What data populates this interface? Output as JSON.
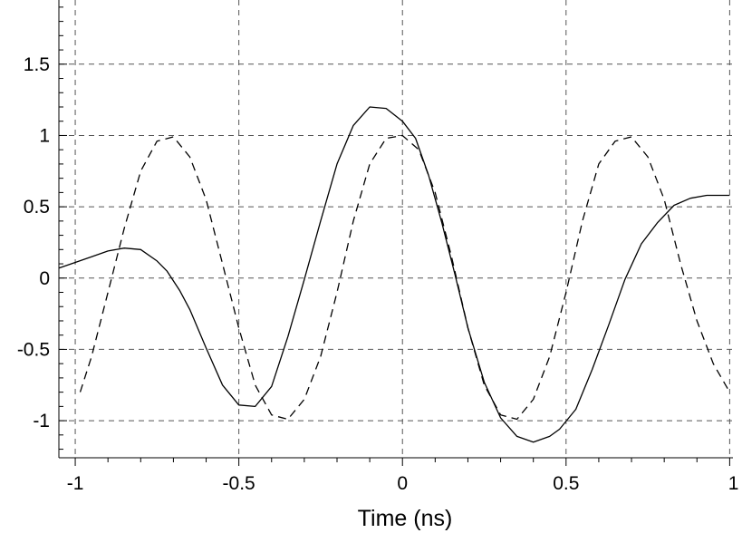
{
  "chart_data": {
    "type": "line",
    "title": "",
    "xlabel": "Time (ns)",
    "ylabel": "",
    "xlim": [
      -1.05,
      1.01
    ],
    "ylim": [
      -1.26,
      1.95
    ],
    "x_ticks": [
      -1,
      -0.5,
      0,
      0.5,
      1
    ],
    "x_tick_labels": [
      "-1",
      "-0.5",
      "0",
      "0.5",
      "1"
    ],
    "y_ticks": [
      -1,
      -0.5,
      0,
      0.5,
      1,
      1.5
    ],
    "y_tick_labels": [
      "-1",
      "-0.5",
      "0",
      "0.5",
      "1",
      "1.5"
    ],
    "grid": true,
    "legend": "none",
    "series": [
      {
        "style": "solid",
        "color": "#000000",
        "x": [
          -1.05,
          -1.0,
          -0.95,
          -0.9,
          -0.85,
          -0.8,
          -0.75,
          -0.72,
          -0.68,
          -0.65,
          -0.6,
          -0.55,
          -0.5,
          -0.45,
          -0.4,
          -0.35,
          -0.3,
          -0.25,
          -0.2,
          -0.15,
          -0.1,
          -0.05,
          0.0,
          0.04,
          0.08,
          0.12,
          0.16,
          0.2,
          0.25,
          0.3,
          0.35,
          0.4,
          0.45,
          0.48,
          0.53,
          0.58,
          0.63,
          0.68,
          0.73,
          0.78,
          0.83,
          0.88,
          0.93,
          0.97,
          1.0
        ],
        "y": [
          0.07,
          0.11,
          0.15,
          0.19,
          0.21,
          0.2,
          0.12,
          0.05,
          -0.09,
          -0.22,
          -0.49,
          -0.75,
          -0.89,
          -0.9,
          -0.76,
          -0.41,
          -0.01,
          0.4,
          0.8,
          1.07,
          1.2,
          1.19,
          1.1,
          0.98,
          0.72,
          0.39,
          0.03,
          -0.35,
          -0.73,
          -0.98,
          -1.11,
          -1.15,
          -1.11,
          -1.06,
          -0.92,
          -0.64,
          -0.33,
          -0.01,
          0.24,
          0.39,
          0.51,
          0.56,
          0.58,
          0.58,
          0.58
        ]
      },
      {
        "style": "dashed",
        "color": "#000000",
        "x": [
          -0.985,
          -0.95,
          -0.9,
          -0.85,
          -0.8,
          -0.75,
          -0.7,
          -0.65,
          -0.6,
          -0.55,
          -0.5,
          -0.45,
          -0.4,
          -0.35,
          -0.3,
          -0.25,
          -0.2,
          -0.15,
          -0.1,
          -0.05,
          0.0,
          0.05,
          0.1,
          0.15,
          0.2,
          0.25,
          0.3,
          0.35,
          0.4,
          0.45,
          0.5,
          0.55,
          0.6,
          0.65,
          0.7,
          0.75,
          0.8,
          0.85,
          0.9,
          0.95,
          1.0
        ],
        "y": [
          -0.8,
          -0.55,
          -0.1,
          0.35,
          0.75,
          0.96,
          0.99,
          0.85,
          0.55,
          0.1,
          -0.35,
          -0.75,
          -0.96,
          -0.99,
          -0.85,
          -0.55,
          -0.1,
          0.4,
          0.8,
          0.98,
          1.0,
          0.9,
          0.6,
          0.15,
          -0.35,
          -0.75,
          -0.96,
          -0.99,
          -0.85,
          -0.55,
          -0.1,
          0.4,
          0.8,
          0.96,
          0.99,
          0.85,
          0.55,
          0.1,
          -0.3,
          -0.6,
          -0.8
        ]
      }
    ]
  }
}
